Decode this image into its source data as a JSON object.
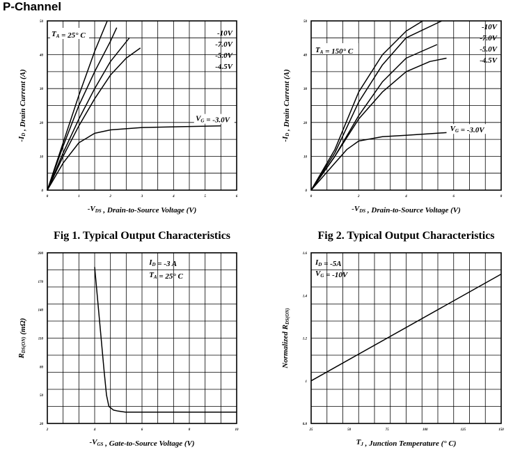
{
  "page_title": "P-Channel",
  "chart_data": [
    {
      "type": "line",
      "caption": "Fig 1. Typical Output Characteristics",
      "xlabel": "-V_DS , Drain-to-Source Voltage (V)",
      "ylabel": "-I_D , Drain Current (A)",
      "xlim": [
        0,
        6
      ],
      "ylim": [
        0,
        50
      ],
      "xticks": [
        0,
        1,
        2,
        3,
        4,
        5,
        6
      ],
      "yticks": [
        0,
        10,
        20,
        30,
        40,
        50
      ],
      "grid": true,
      "condition": "T_A = 25° C",
      "series": [
        {
          "name": "-10V",
          "x": [
            0,
            0.5,
            1.0,
            1.5,
            1.9
          ],
          "y": [
            0,
            14,
            28,
            41,
            50
          ]
        },
        {
          "name": "-7.0V",
          "x": [
            0,
            0.5,
            1.0,
            1.5,
            2.0,
            2.2
          ],
          "y": [
            0,
            13,
            25,
            35,
            44,
            48
          ]
        },
        {
          "name": "-5.0V",
          "x": [
            0,
            0.5,
            1.0,
            1.5,
            2.0,
            2.6
          ],
          "y": [
            0,
            11,
            21,
            30,
            38,
            45
          ]
        },
        {
          "name": "-4.5V",
          "x": [
            0,
            0.5,
            1.0,
            1.5,
            2.0,
            2.5,
            2.95
          ],
          "y": [
            0,
            10,
            19,
            27,
            34,
            39,
            42
          ]
        },
        {
          "name": "-3.0V",
          "x": [
            0,
            0.5,
            1.0,
            1.5,
            2.0,
            3.0,
            4.0,
            5.5
          ],
          "y": [
            0,
            8,
            14,
            16.8,
            17.8,
            18.5,
            18.7,
            19
          ]
        }
      ],
      "legend_labels": [
        "-10V",
        "-7.0V",
        "-5.0V",
        "-4.5V"
      ],
      "vg_label": "V_G = -3.0V"
    },
    {
      "type": "line",
      "caption": "Fig 2. Typical Output Characteristics",
      "xlabel": "-V_DS , Drain-to-Source Voltage (V)",
      "ylabel": "-I_D , Drain Current (A)",
      "xlim": [
        0,
        8
      ],
      "ylim": [
        0,
        50
      ],
      "xticks": [
        0,
        2,
        4,
        6,
        8
      ],
      "yticks": [
        0,
        10,
        20,
        30,
        40,
        50
      ],
      "grid": true,
      "condition": "T_A = 150° C",
      "series": [
        {
          "name": "-10V",
          "x": [
            0,
            1.0,
            2.0,
            3.0,
            4.0,
            4.7
          ],
          "y": [
            0,
            12,
            29,
            40,
            47,
            50
          ]
        },
        {
          "name": "-7.0V",
          "x": [
            0,
            1.0,
            2.0,
            3.0,
            4.0,
            5.5
          ],
          "y": [
            0,
            11,
            26,
            37,
            45,
            50
          ]
        },
        {
          "name": "-5.0V",
          "x": [
            0,
            1.0,
            2.0,
            3.0,
            4.0,
            5.3
          ],
          "y": [
            0,
            10,
            22,
            32,
            39,
            43
          ]
        },
        {
          "name": "-4.5V",
          "x": [
            0,
            1.0,
            2.0,
            3.0,
            4.0,
            5.0,
            5.7
          ],
          "y": [
            0,
            10,
            21,
            29,
            35,
            38,
            39
          ]
        },
        {
          "name": "-3.0V",
          "x": [
            0,
            1.0,
            1.5,
            2.0,
            3.0,
            4.0,
            5.7
          ],
          "y": [
            0,
            8,
            12,
            14.5,
            15.8,
            16.2,
            17
          ]
        }
      ],
      "legend_labels": [
        "-10V",
        "-7.0V",
        "-5.0V",
        "-4.5V"
      ],
      "vg_label": "V_G = -3.0V"
    },
    {
      "type": "line",
      "caption": "",
      "xlabel": "-V_GS , Gate-to-Source Voltage (V)",
      "ylabel": "R_DS(ON) (mΩ)",
      "xlim": [
        2,
        10
      ],
      "ylim": [
        20,
        200
      ],
      "xticks": [
        2,
        4,
        6,
        8,
        10
      ],
      "yticks": [
        20,
        50,
        80,
        110,
        140,
        170,
        200
      ],
      "grid": true,
      "conditions": [
        "I_D = -3 A",
        "T_A = 25° C"
      ],
      "series": [
        {
          "name": "R_DS(ON)",
          "x": [
            4.0,
            4.2,
            4.4,
            4.5,
            4.6,
            4.8,
            5.0,
            5.3,
            6.0,
            8.0,
            10.0
          ],
          "y": [
            185,
            130,
            75,
            50,
            38,
            34,
            33,
            32,
            32,
            32,
            32
          ]
        }
      ]
    },
    {
      "type": "line",
      "caption": "",
      "xlabel": "T_J , Junction Temperature (° C)",
      "ylabel": "Normalized R_DS(ON)",
      "xlim": [
        25,
        150
      ],
      "ylim": [
        0.8,
        1.6
      ],
      "xticks": [
        25,
        50,
        75,
        100,
        125,
        150
      ],
      "yticks": [
        0.8,
        1.0,
        1.2,
        1.4,
        1.6
      ],
      "grid": true,
      "conditions": [
        "I_D = -5A",
        "V_G = -10V"
      ],
      "series": [
        {
          "name": "Normalized R_DS(ON)",
          "x": [
            25,
            150
          ],
          "y": [
            1.0,
            1.5
          ]
        }
      ]
    }
  ]
}
